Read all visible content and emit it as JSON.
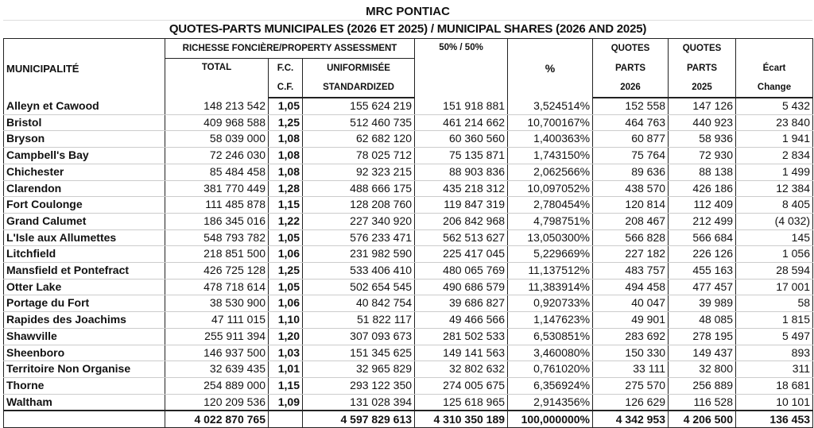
{
  "title": "MRC PONTIAC",
  "subtitle": "QUOTES-PARTS MUNICIPALES (2026 ET 2025)  /  MUNICIPAL SHARES (2026 AND 2025)",
  "headers": {
    "municipalite": "MUNICIPALITÉ",
    "richesse": "RICHESSE FONCIÈRE/PROPERTY ASSESSMENT",
    "total": "TOTAL",
    "fc": "F.C.",
    "cf": "C.F.",
    "uniformisee": "UNIFORMISÉE",
    "standardized": "STANDARDIZED",
    "fifty": "50% / 50%",
    "percent": "%",
    "quotes_a": "QUOTES",
    "parts_a": "PARTS",
    "year_2026": "2026",
    "quotes_b": "QUOTES",
    "parts_b": "PARTS",
    "year_2025": "2025",
    "ecart": "Écart",
    "change": "Change"
  },
  "rows": [
    [
      "Alleyn et Cawood",
      "148 213 542",
      "1,05",
      "155 624 219",
      "151 918 881",
      "3,524514%",
      "152 558",
      "147 126",
      "5 432"
    ],
    [
      "Bristol",
      "409 968 588",
      "1,25",
      "512 460 735",
      "461 214 662",
      "10,700167%",
      "464 763",
      "440 923",
      "23 840"
    ],
    [
      "Bryson",
      "58 039 000",
      "1,08",
      "62 682 120",
      "60 360 560",
      "1,400363%",
      "60 877",
      "58 936",
      "1 941"
    ],
    [
      "Campbell's Bay",
      "72 246 030",
      "1,08",
      "78 025 712",
      "75 135 871",
      "1,743150%",
      "75 764",
      "72 930",
      "2 834"
    ],
    [
      "Chichester",
      "85 484 458",
      "1,08",
      "92 323 215",
      "88 903 836",
      "2,062566%",
      "89 636",
      "88 138",
      "1 499"
    ],
    [
      "Clarendon",
      "381 770 449",
      "1,28",
      "488 666 175",
      "435 218 312",
      "10,097052%",
      "438 570",
      "426 186",
      "12 384"
    ],
    [
      "Fort Coulonge",
      "111 485 878",
      "1,15",
      "128 208 760",
      "119 847 319",
      "2,780454%",
      "120 814",
      "112 409",
      "8 405"
    ],
    [
      "Grand Calumet",
      "186 345 016",
      "1,22",
      "227 340 920",
      "206 842 968",
      "4,798751%",
      "208 467",
      "212 499",
      "(4 032)"
    ],
    [
      "L'Isle aux Allumettes",
      "548 793 782",
      "1,05",
      "576 233 471",
      "562 513 627",
      "13,050300%",
      "566 828",
      "566 684",
      "145"
    ],
    [
      "Litchfield",
      "218 851 500",
      "1,06",
      "231 982 590",
      "225 417 045",
      "5,229669%",
      "227 182",
      "226 126",
      "1 056"
    ],
    [
      "Mansfield et Pontefract",
      "426 725 128",
      "1,25",
      "533 406 410",
      "480 065 769",
      "11,137512%",
      "483 757",
      "455 163",
      "28 594"
    ],
    [
      "Otter Lake",
      "478 718 614",
      "1,05",
      "502 654 545",
      "490 686 579",
      "11,383914%",
      "494 458",
      "477 457",
      "17 001"
    ],
    [
      "Portage du Fort",
      "38 530 900",
      "1,06",
      "40 842 754",
      "39 686 827",
      "0,920733%",
      "40 047",
      "39 989",
      "58"
    ],
    [
      "Rapides des Joachims",
      "47 111 015",
      "1,10",
      "51 822 117",
      "49 466 566",
      "1,147623%",
      "49 901",
      "48 085",
      "1 815"
    ],
    [
      "Shawville",
      "255 911 394",
      "1,20",
      "307 093 673",
      "281 502 533",
      "6,530851%",
      "283 692",
      "278 195",
      "5 497"
    ],
    [
      "Sheenboro",
      "146 937 500",
      "1,03",
      "151 345 625",
      "149 141 563",
      "3,460080%",
      "150 330",
      "149 437",
      "893"
    ],
    [
      "Territoire Non Organise",
      "32 639 435",
      "1,01",
      "32 965 829",
      "32 802 632",
      "0,761020%",
      "33 111",
      "32 800",
      "311"
    ],
    [
      "Thorne",
      "254 889 000",
      "1,15",
      "293 122 350",
      "274 005 675",
      "6,356924%",
      "275 570",
      "256 889",
      "18 681"
    ],
    [
      "Waltham",
      "120 209 536",
      "1,09",
      "131 028 394",
      "125 618 965",
      "2,914356%",
      "126 629",
      "116 528",
      "10 101"
    ]
  ],
  "totals": [
    "",
    "4 022 870 765",
    "",
    "4 597 829 613",
    "4 310 350 189",
    "100,000000%",
    "4 342 953",
    "4 206 500",
    "136 453"
  ]
}
